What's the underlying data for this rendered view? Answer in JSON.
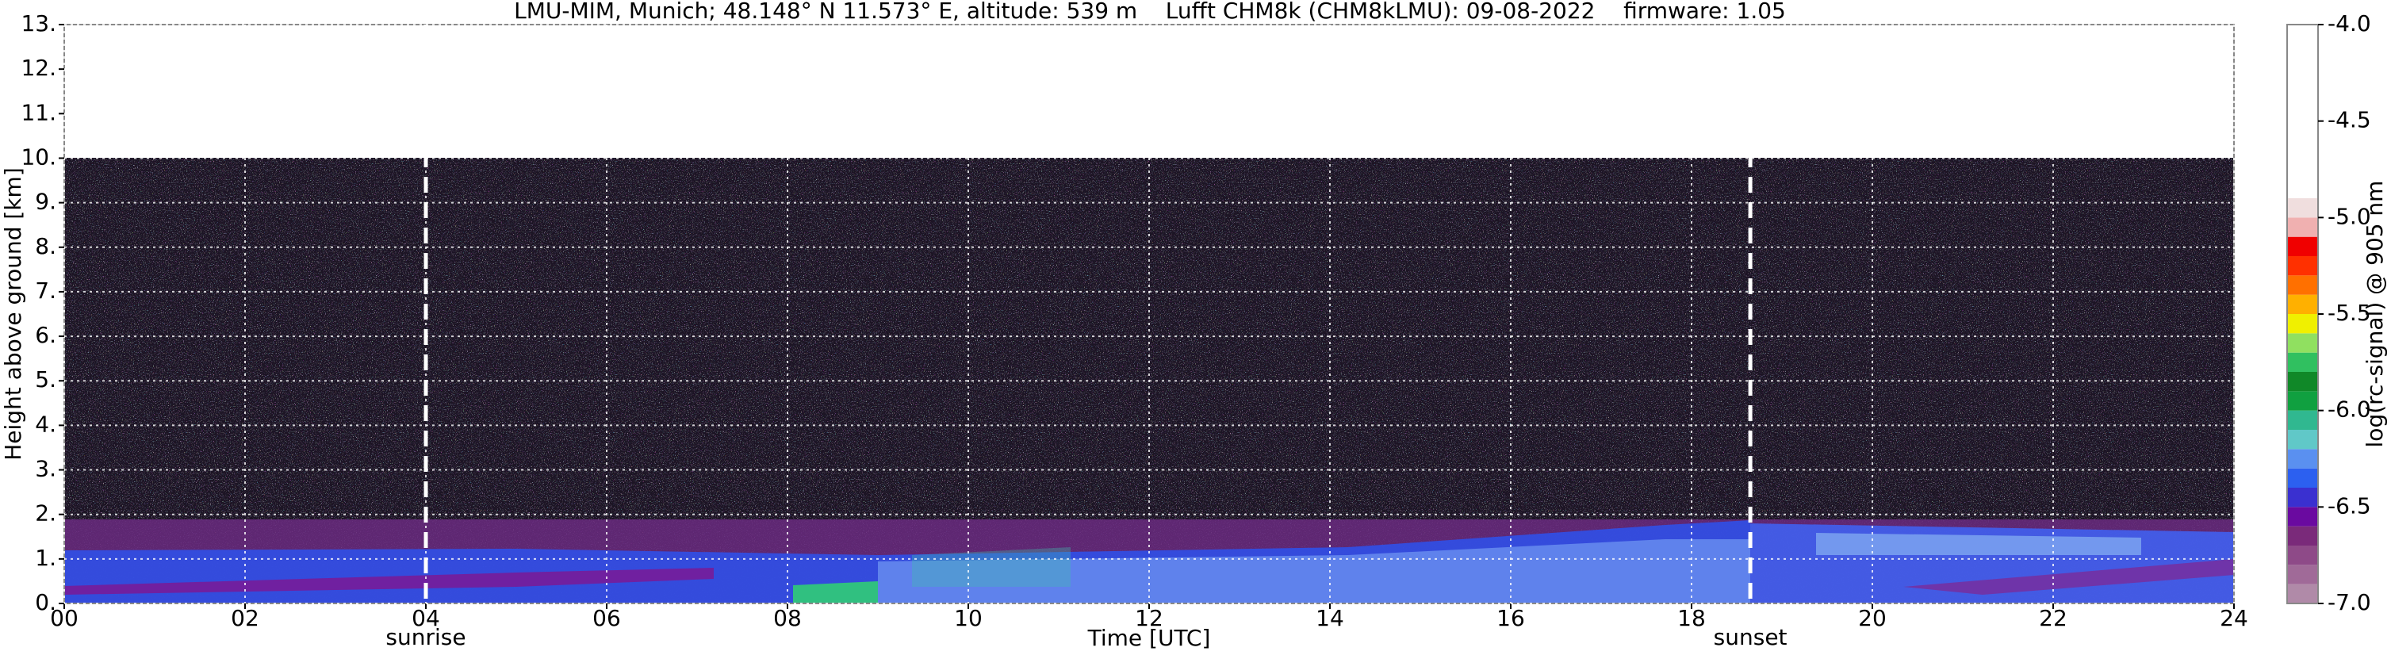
{
  "chart_data": {
    "type": "heatmap",
    "title": "LMU-MIM, Munich; 48.148° N 11.573° E, altitude: 539 m    Lufft CHM8k (CHM8kLMU): 09-08-2022    firmware: 1.05",
    "x_label": "Time [UTC]",
    "y_label": "Height above ground [km]",
    "xlim": [
      0,
      24
    ],
    "ylim": [
      0,
      13
    ],
    "xticks": [
      {
        "value": 0,
        "label": "00"
      },
      {
        "value": 2,
        "label": "02"
      },
      {
        "value": 4,
        "label": "04"
      },
      {
        "value": 6,
        "label": "06"
      },
      {
        "value": 8,
        "label": "08"
      },
      10,
      12,
      14,
      16,
      18,
      20,
      22,
      24
    ],
    "yticks": [
      {
        "value": 0,
        "label": "0."
      },
      {
        "value": 1,
        "label": "1."
      },
      {
        "value": 2,
        "label": "2."
      },
      {
        "value": 3,
        "label": "3."
      },
      {
        "value": 4,
        "label": "4."
      },
      {
        "value": 5,
        "label": "5."
      },
      {
        "value": 6,
        "label": "6."
      },
      {
        "value": 7,
        "label": "7."
      },
      {
        "value": 8,
        "label": "8."
      },
      {
        "value": 9,
        "label": "9."
      },
      {
        "value": 10,
        "label": "10."
      },
      {
        "value": 11,
        "label": "11."
      },
      {
        "value": 12,
        "label": "12."
      },
      {
        "value": 13,
        "label": "13."
      }
    ],
    "grid": true,
    "annotations": [
      {
        "x": 4.0,
        "label": "sunrise"
      },
      {
        "x": 18.65,
        "label": "sunset"
      }
    ],
    "colorbar": {
      "label": "log(rc-signal) @ 905 nm",
      "levels": [
        -7.0,
        -6.9,
        -6.8,
        -6.7,
        -6.6,
        -6.5,
        -6.4,
        -6.3,
        -6.2,
        -6.1,
        -6.0,
        -5.9,
        -5.8,
        -5.7,
        -5.6,
        -5.5,
        -5.4,
        -5.3,
        -5.2,
        -5.1,
        -5.0,
        -4.9,
        -4.0
      ],
      "colors": [
        "#b08aa8",
        "#a06a98",
        "#8e4a88",
        "#7a2a7a",
        "#6a0aa0",
        "#3a30d0",
        "#2c60f0",
        "#5a90f0",
        "#60c8c8",
        "#30b890",
        "#10a040",
        "#108828",
        "#30c060",
        "#90e060",
        "#f0f000",
        "#ffb000",
        "#ff7000",
        "#ff3000",
        "#f00000",
        "#f0b0b0",
        "#f0dede",
        "#ffffff"
      ],
      "ticks": [
        {
          "value": -7,
          "label": "-7.0"
        },
        {
          "value": -6.5,
          "label": "-6.5"
        },
        {
          "value": -6,
          "label": "-6.0"
        },
        {
          "value": -5.5,
          "label": "-5.5"
        },
        {
          "value": -5,
          "label": "-5.0"
        },
        {
          "value": -4.5,
          "label": "-4.5"
        },
        {
          "value": -4,
          "label": "-4.0"
        }
      ]
    }
  }
}
